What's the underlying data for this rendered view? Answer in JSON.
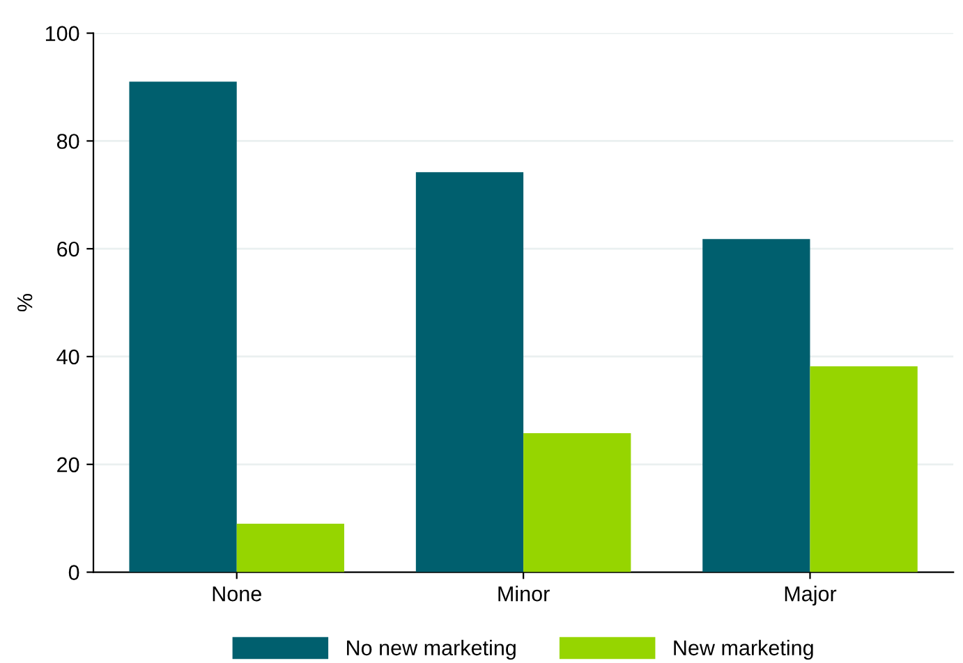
{
  "chart_data": {
    "type": "bar",
    "ylabel": "%",
    "categories": [
      "None",
      "Minor",
      "Major"
    ],
    "series": [
      {
        "name": "No new marketing",
        "color": "#005f6e",
        "values": [
          91,
          74.2,
          61.8
        ]
      },
      {
        "name": "New marketing",
        "color": "#96d500",
        "values": [
          9,
          25.8,
          38.2
        ]
      }
    ],
    "ylim": [
      0,
      100
    ],
    "yticks": [
      0,
      20,
      40,
      60,
      80,
      100
    ],
    "grid": "y",
    "legend": "bottom"
  }
}
